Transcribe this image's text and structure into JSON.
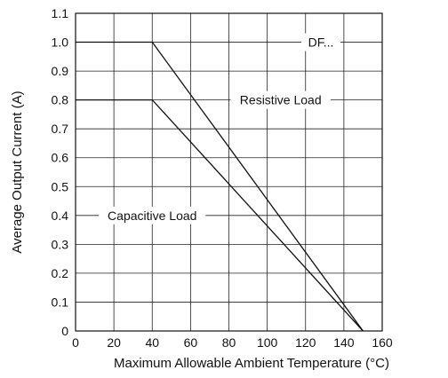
{
  "chart_data": {
    "type": "line",
    "title": "",
    "xlabel": "Maximum Allowable Ambient Temperature (°C)",
    "ylabel": "Average Output Current (A)",
    "xlim": [
      0,
      160
    ],
    "ylim": [
      0,
      1.1
    ],
    "grid": true,
    "x_ticks": [
      "0",
      "20",
      "40",
      "60",
      "80",
      "100",
      "120",
      "140",
      "160"
    ],
    "y_ticks": [
      "0",
      "0.1",
      "0.2",
      "0.3",
      "0.4",
      "0.5",
      "0.6",
      "0.7",
      "0.8",
      "0.9",
      "1.0",
      "1.1"
    ],
    "series": [
      {
        "name": "Resistive Load",
        "x": [
          0,
          40,
          150
        ],
        "y": [
          1.0,
          1.0,
          0
        ]
      },
      {
        "name": "Capacitive Load",
        "x": [
          0,
          40,
          150
        ],
        "y": [
          0.8,
          0.8,
          0
        ]
      }
    ],
    "annotations": [
      {
        "text": "DF...",
        "x": 128,
        "y": 1.0
      },
      {
        "text": "Resistive Load",
        "x": 107,
        "y": 0.8
      },
      {
        "text": "Capacitive Load",
        "x": 40,
        "y": 0.4
      }
    ]
  }
}
